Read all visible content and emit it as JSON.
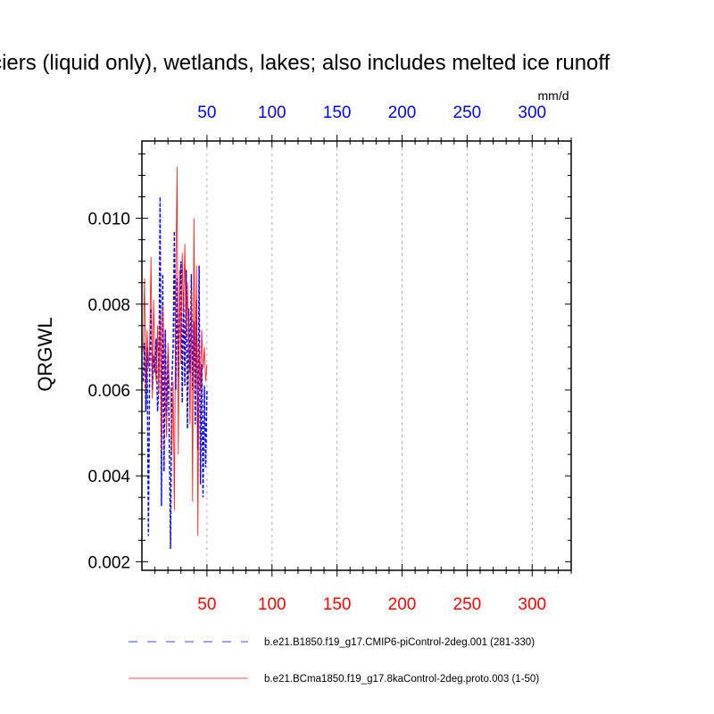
{
  "chart_data": {
    "type": "line",
    "title": "aciers (liquid only), wetlands, lakes; also includes melted ice runoff",
    "ylabel": "QRGWL",
    "units": "mm/d",
    "x_range": [
      0,
      330
    ],
    "ylim": [
      0.0018,
      0.0118
    ],
    "x_ticks": [
      50,
      100,
      150,
      200,
      250,
      300
    ],
    "y_ticks": [
      0.002,
      0.004,
      0.006,
      0.008,
      0.01
    ],
    "y_tick_labels": [
      "0.002",
      "0.004",
      "0.006",
      "0.008",
      "0.010"
    ],
    "top_axis_color": "#0000ff",
    "bottom_axis_color": "#ff0000",
    "vertical_grid": "dashed-gray",
    "legend_position": "below-plot",
    "series": [
      {
        "name": "b.e21.B1850.f19_g17.CMIP6-piControl-2deg.001 (281-330)",
        "color": "#0000ff",
        "dash": "dashed",
        "x": [
          1,
          2,
          3,
          4,
          5,
          6,
          7,
          8,
          9,
          10,
          11,
          12,
          13,
          14,
          15,
          16,
          17,
          18,
          19,
          20,
          21,
          22,
          23,
          24,
          25,
          26,
          27,
          28,
          29,
          30,
          31,
          32,
          33,
          34,
          35,
          36,
          37,
          38,
          39,
          40,
          41,
          42,
          43,
          44,
          45,
          46,
          47,
          48,
          49,
          50
        ],
        "values": [
          0.0062,
          0.0071,
          0.0055,
          0.007,
          0.0026,
          0.0065,
          0.0079,
          0.006,
          0.0068,
          0.0064,
          0.0072,
          0.0055,
          0.006,
          0.0105,
          0.0033,
          0.0087,
          0.0041,
          0.0074,
          0.0054,
          0.0068,
          0.005,
          0.0023,
          0.0062,
          0.007,
          0.0097,
          0.006,
          0.0086,
          0.0063,
          0.0081,
          0.009,
          0.0057,
          0.0083,
          0.0061,
          0.0088,
          0.0051,
          0.0079,
          0.0064,
          0.0087,
          0.006,
          0.0076,
          0.0052,
          0.0081,
          0.0046,
          0.0089,
          0.0038,
          0.0066,
          0.0035,
          0.0061,
          0.0042,
          0.006
        ]
      },
      {
        "name": "b.e21.BCma1850.f19_g17.8kaControl-2deg.proto.003 (1-50)",
        "color": "#ff0000",
        "dash": "solid",
        "x": [
          1,
          2,
          3,
          4,
          5,
          6,
          7,
          8,
          9,
          10,
          11,
          12,
          13,
          14,
          15,
          16,
          17,
          18,
          19,
          20,
          21,
          22,
          23,
          24,
          25,
          26,
          27,
          28,
          29,
          30,
          31,
          32,
          33,
          34,
          35,
          36,
          37,
          38,
          39,
          40,
          41,
          42,
          43,
          44,
          45,
          46,
          47,
          48,
          49,
          50
        ],
        "values": [
          0.0069,
          0.0086,
          0.006,
          0.0074,
          0.0065,
          0.0071,
          0.0091,
          0.0058,
          0.0081,
          0.0067,
          0.0062,
          0.0075,
          0.0059,
          0.0078,
          0.0046,
          0.008,
          0.0068,
          0.0058,
          0.0049,
          0.0071,
          0.0061,
          0.006,
          0.0045,
          0.0062,
          0.0032,
          0.0084,
          0.0112,
          0.0045,
          0.0088,
          0.0066,
          0.0092,
          0.0078,
          0.0094,
          0.0072,
          0.0085,
          0.0069,
          0.0052,
          0.0083,
          0.0034,
          0.01,
          0.006,
          0.0089,
          0.0026,
          0.0071,
          0.006,
          0.0074,
          0.0065,
          0.007,
          0.0062,
          0.0066
        ]
      }
    ]
  }
}
